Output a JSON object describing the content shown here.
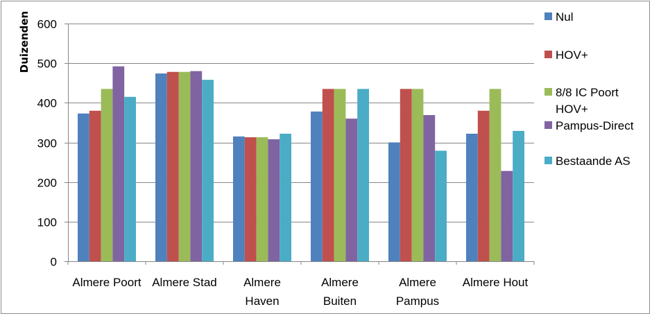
{
  "chart_data": {
    "type": "bar",
    "title": "",
    "xlabel": "",
    "ylabel": "Duizenden",
    "ylim": [
      0,
      600
    ],
    "yticks": [
      "0",
      "100",
      "200",
      "300",
      "400",
      "500",
      "600"
    ],
    "grid": true,
    "legend_position": "right",
    "categories": [
      [
        "Almere Poort"
      ],
      [
        "Almere Stad"
      ],
      [
        "Almere",
        "Haven"
      ],
      [
        "Almere",
        "Buiten"
      ],
      [
        "Almere",
        "Pampus"
      ],
      [
        "Almere Hout"
      ]
    ],
    "series": [
      {
        "name": [
          "Nul"
        ],
        "color": "#4f81bd",
        "values": [
          373,
          474,
          315,
          378,
          300,
          322
        ]
      },
      {
        "name": [
          "HOV+"
        ],
        "color": "#c0504d",
        "values": [
          380,
          478,
          313,
          435,
          435,
          380
        ]
      },
      {
        "name": [
          "8/8 IC Poort",
          "HOV+"
        ],
        "color": "#9bbb59",
        "values": [
          435,
          478,
          313,
          435,
          435,
          435
        ]
      },
      {
        "name": [
          "Pampus-Direct"
        ],
        "color": "#8064a2",
        "values": [
          492,
          480,
          308,
          360,
          369,
          228
        ]
      },
      {
        "name": [
          "Bestaande AS"
        ],
        "color": "#4bacc6",
        "values": [
          415,
          458,
          322,
          435,
          279,
          329
        ]
      }
    ]
  }
}
